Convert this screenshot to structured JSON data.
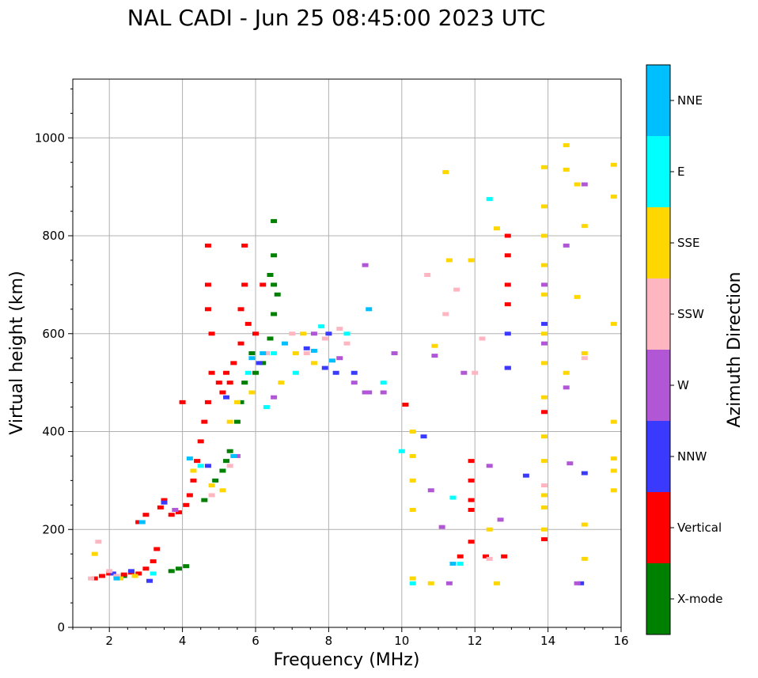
{
  "chart_data": {
    "type": "scatter",
    "title": "NAL CADI - Jun 25 08:45:00 2023 UTC",
    "xlabel": "Frequency (MHz)",
    "ylabel": "Virtual height (km)",
    "xlim": [
      1,
      16
    ],
    "ylim": [
      0,
      1120
    ],
    "xticks": [
      2,
      4,
      6,
      8,
      10,
      12,
      14,
      16
    ],
    "yticks": [
      0,
      200,
      400,
      600,
      800,
      1000
    ],
    "grid": true,
    "colorbar": {
      "label": "Azimuth Direction",
      "categories": [
        {
          "name": "X-mode",
          "color": "#008000"
        },
        {
          "name": "Vertical",
          "color": "#ff0000"
        },
        {
          "name": "NNW",
          "color": "#3a3aff"
        },
        {
          "name": "W",
          "color": "#b157d6"
        },
        {
          "name": "SSW",
          "color": "#ffb6c1"
        },
        {
          "name": "SSE",
          "color": "#ffd700"
        },
        {
          "name": "E",
          "color": "#00ffff"
        },
        {
          "name": "NNE",
          "color": "#00bfff"
        }
      ]
    },
    "series": [
      {
        "name": "X-mode",
        "points": [
          [
            2.4,
            105
          ],
          [
            3.7,
            115
          ],
          [
            3.9,
            120
          ],
          [
            4.1,
            125
          ],
          [
            4.6,
            260
          ],
          [
            4.9,
            300
          ],
          [
            5.1,
            320
          ],
          [
            5.3,
            360
          ],
          [
            5.5,
            420
          ],
          [
            5.7,
            500
          ],
          [
            5.9,
            560
          ],
          [
            6.0,
            520
          ],
          [
            6.2,
            540
          ],
          [
            6.4,
            590
          ],
          [
            6.5,
            640
          ],
          [
            6.5,
            700
          ],
          [
            6.5,
            760
          ],
          [
            6.5,
            830
          ],
          [
            6.4,
            720
          ],
          [
            6.6,
            680
          ],
          [
            6.3,
            560
          ],
          [
            5.2,
            340
          ],
          [
            5.6,
            460
          ]
        ]
      },
      {
        "name": "Vertical",
        "points": [
          [
            1.6,
            100
          ],
          [
            1.8,
            105
          ],
          [
            2.0,
            110
          ],
          [
            2.2,
            105
          ],
          [
            2.4,
            108
          ],
          [
            2.6,
            112
          ],
          [
            2.8,
            110
          ],
          [
            3.0,
            120
          ],
          [
            3.2,
            135
          ],
          [
            3.3,
            160
          ],
          [
            2.8,
            215
          ],
          [
            3.0,
            230
          ],
          [
            3.4,
            245
          ],
          [
            3.5,
            260
          ],
          [
            3.7,
            230
          ],
          [
            3.9,
            235
          ],
          [
            4.1,
            250
          ],
          [
            4.2,
            270
          ],
          [
            4.3,
            300
          ],
          [
            4.4,
            340
          ],
          [
            4.5,
            380
          ],
          [
            4.6,
            420
          ],
          [
            4.7,
            460
          ],
          [
            4.8,
            520
          ],
          [
            4.8,
            600
          ],
          [
            4.7,
            650
          ],
          [
            4.7,
            700
          ],
          [
            4.7,
            780
          ],
          [
            5.0,
            500
          ],
          [
            5.1,
            480
          ],
          [
            5.2,
            520
          ],
          [
            5.3,
            500
          ],
          [
            5.4,
            540
          ],
          [
            5.6,
            580
          ],
          [
            5.6,
            650
          ],
          [
            5.7,
            700
          ],
          [
            5.7,
            780
          ],
          [
            5.8,
            620
          ],
          [
            6.0,
            600
          ],
          [
            6.2,
            700
          ],
          [
            4.0,
            460
          ],
          [
            10.1,
            455
          ],
          [
            11.9,
            300
          ],
          [
            11.9,
            340
          ],
          [
            11.9,
            240
          ],
          [
            11.9,
            260
          ],
          [
            12.3,
            145
          ],
          [
            12.8,
            145
          ],
          [
            12.9,
            660
          ],
          [
            12.9,
            700
          ],
          [
            12.9,
            760
          ],
          [
            12.9,
            800
          ],
          [
            12.9,
            530
          ],
          [
            13.9,
            440
          ],
          [
            13.9,
            180
          ],
          [
            11.6,
            145
          ],
          [
            11.9,
            175
          ]
        ]
      },
      {
        "name": "NNW",
        "points": [
          [
            2.1,
            110
          ],
          [
            2.6,
            115
          ],
          [
            3.1,
            95
          ],
          [
            3.5,
            255
          ],
          [
            4.7,
            330
          ],
          [
            5.2,
            470
          ],
          [
            6.1,
            540
          ],
          [
            7.4,
            570
          ],
          [
            7.9,
            530
          ],
          [
            8.2,
            520
          ],
          [
            8.7,
            520
          ],
          [
            10.6,
            390
          ],
          [
            12.9,
            600
          ],
          [
            12.9,
            530
          ],
          [
            13.9,
            620
          ],
          [
            13.4,
            310
          ],
          [
            14.9,
            90
          ],
          [
            15.0,
            315
          ],
          [
            8.0,
            600
          ]
        ]
      },
      {
        "name": "W",
        "points": [
          [
            3.8,
            240
          ],
          [
            5.5,
            350
          ],
          [
            6.5,
            470
          ],
          [
            7.6,
            600
          ],
          [
            8.3,
            550
          ],
          [
            8.7,
            500
          ],
          [
            9.0,
            480
          ],
          [
            9.0,
            740
          ],
          [
            9.1,
            480
          ],
          [
            9.5,
            480
          ],
          [
            9.8,
            560
          ],
          [
            10.8,
            280
          ],
          [
            11.3,
            90
          ],
          [
            11.7,
            520
          ],
          [
            12.4,
            330
          ],
          [
            12.7,
            220
          ],
          [
            13.9,
            700
          ],
          [
            13.9,
            580
          ],
          [
            14.5,
            780
          ],
          [
            14.5,
            490
          ],
          [
            14.6,
            335
          ],
          [
            14.8,
            90
          ],
          [
            15.0,
            905
          ],
          [
            11.1,
            205
          ],
          [
            10.9,
            555
          ]
        ]
      },
      {
        "name": "SSW",
        "points": [
          [
            1.5,
            100
          ],
          [
            1.7,
            175
          ],
          [
            2.0,
            115
          ],
          [
            2.2,
            105
          ],
          [
            4.8,
            270
          ],
          [
            5.3,
            330
          ],
          [
            6.3,
            560
          ],
          [
            7.0,
            600
          ],
          [
            7.4,
            560
          ],
          [
            7.9,
            590
          ],
          [
            8.3,
            610
          ],
          [
            8.5,
            580
          ],
          [
            10.7,
            720
          ],
          [
            11.2,
            640
          ],
          [
            11.5,
            690
          ],
          [
            12.2,
            590
          ],
          [
            12.0,
            520
          ],
          [
            12.4,
            140
          ],
          [
            13.9,
            290
          ],
          [
            15.0,
            550
          ]
        ]
      },
      {
        "name": "SSE",
        "points": [
          [
            1.6,
            150
          ],
          [
            2.3,
            100
          ],
          [
            2.7,
            105
          ],
          [
            4.3,
            320
          ],
          [
            4.8,
            290
          ],
          [
            5.1,
            280
          ],
          [
            5.3,
            420
          ],
          [
            5.5,
            460
          ],
          [
            5.9,
            480
          ],
          [
            6.7,
            500
          ],
          [
            7.1,
            560
          ],
          [
            7.3,
            600
          ],
          [
            7.6,
            540
          ],
          [
            10.3,
            240
          ],
          [
            10.3,
            300
          ],
          [
            10.3,
            350
          ],
          [
            10.3,
            400
          ],
          [
            10.3,
            100
          ],
          [
            10.8,
            90
          ],
          [
            10.9,
            575
          ],
          [
            11.2,
            930
          ],
          [
            11.3,
            750
          ],
          [
            11.9,
            750
          ],
          [
            12.4,
            200
          ],
          [
            12.6,
            90
          ],
          [
            12.6,
            815
          ],
          [
            13.9,
            940
          ],
          [
            13.9,
            860
          ],
          [
            13.9,
            800
          ],
          [
            13.9,
            740
          ],
          [
            13.9,
            680
          ],
          [
            13.9,
            600
          ],
          [
            13.9,
            540
          ],
          [
            13.9,
            470
          ],
          [
            13.9,
            390
          ],
          [
            13.9,
            340
          ],
          [
            13.9,
            270
          ],
          [
            13.9,
            245
          ],
          [
            13.9,
            200
          ],
          [
            14.5,
            985
          ],
          [
            14.5,
            935
          ],
          [
            14.8,
            905
          ],
          [
            14.8,
            675
          ],
          [
            14.5,
            520
          ],
          [
            15.0,
            820
          ],
          [
            15.0,
            560
          ],
          [
            15.0,
            210
          ],
          [
            15.0,
            140
          ],
          [
            15.8,
            945
          ],
          [
            15.8,
            880
          ],
          [
            15.8,
            620
          ],
          [
            15.8,
            420
          ],
          [
            15.8,
            345
          ],
          [
            15.8,
            320
          ],
          [
            15.8,
            280
          ]
        ]
      },
      {
        "name": "E",
        "points": [
          [
            3.2,
            110
          ],
          [
            4.5,
            330
          ],
          [
            5.8,
            520
          ],
          [
            6.3,
            450
          ],
          [
            6.5,
            560
          ],
          [
            7.1,
            520
          ],
          [
            7.8,
            615
          ],
          [
            8.5,
            600
          ],
          [
            9.5,
            500
          ],
          [
            10.0,
            360
          ],
          [
            10.3,
            90
          ],
          [
            11.4,
            265
          ],
          [
            11.6,
            130
          ],
          [
            12.4,
            875
          ]
        ]
      },
      {
        "name": "NNE",
        "points": [
          [
            2.2,
            100
          ],
          [
            2.9,
            215
          ],
          [
            4.2,
            345
          ],
          [
            5.4,
            350
          ],
          [
            5.9,
            550
          ],
          [
            6.2,
            560
          ],
          [
            6.8,
            580
          ],
          [
            7.6,
            565
          ],
          [
            8.1,
            545
          ],
          [
            9.1,
            650
          ],
          [
            11.4,
            130
          ]
        ]
      }
    ]
  }
}
